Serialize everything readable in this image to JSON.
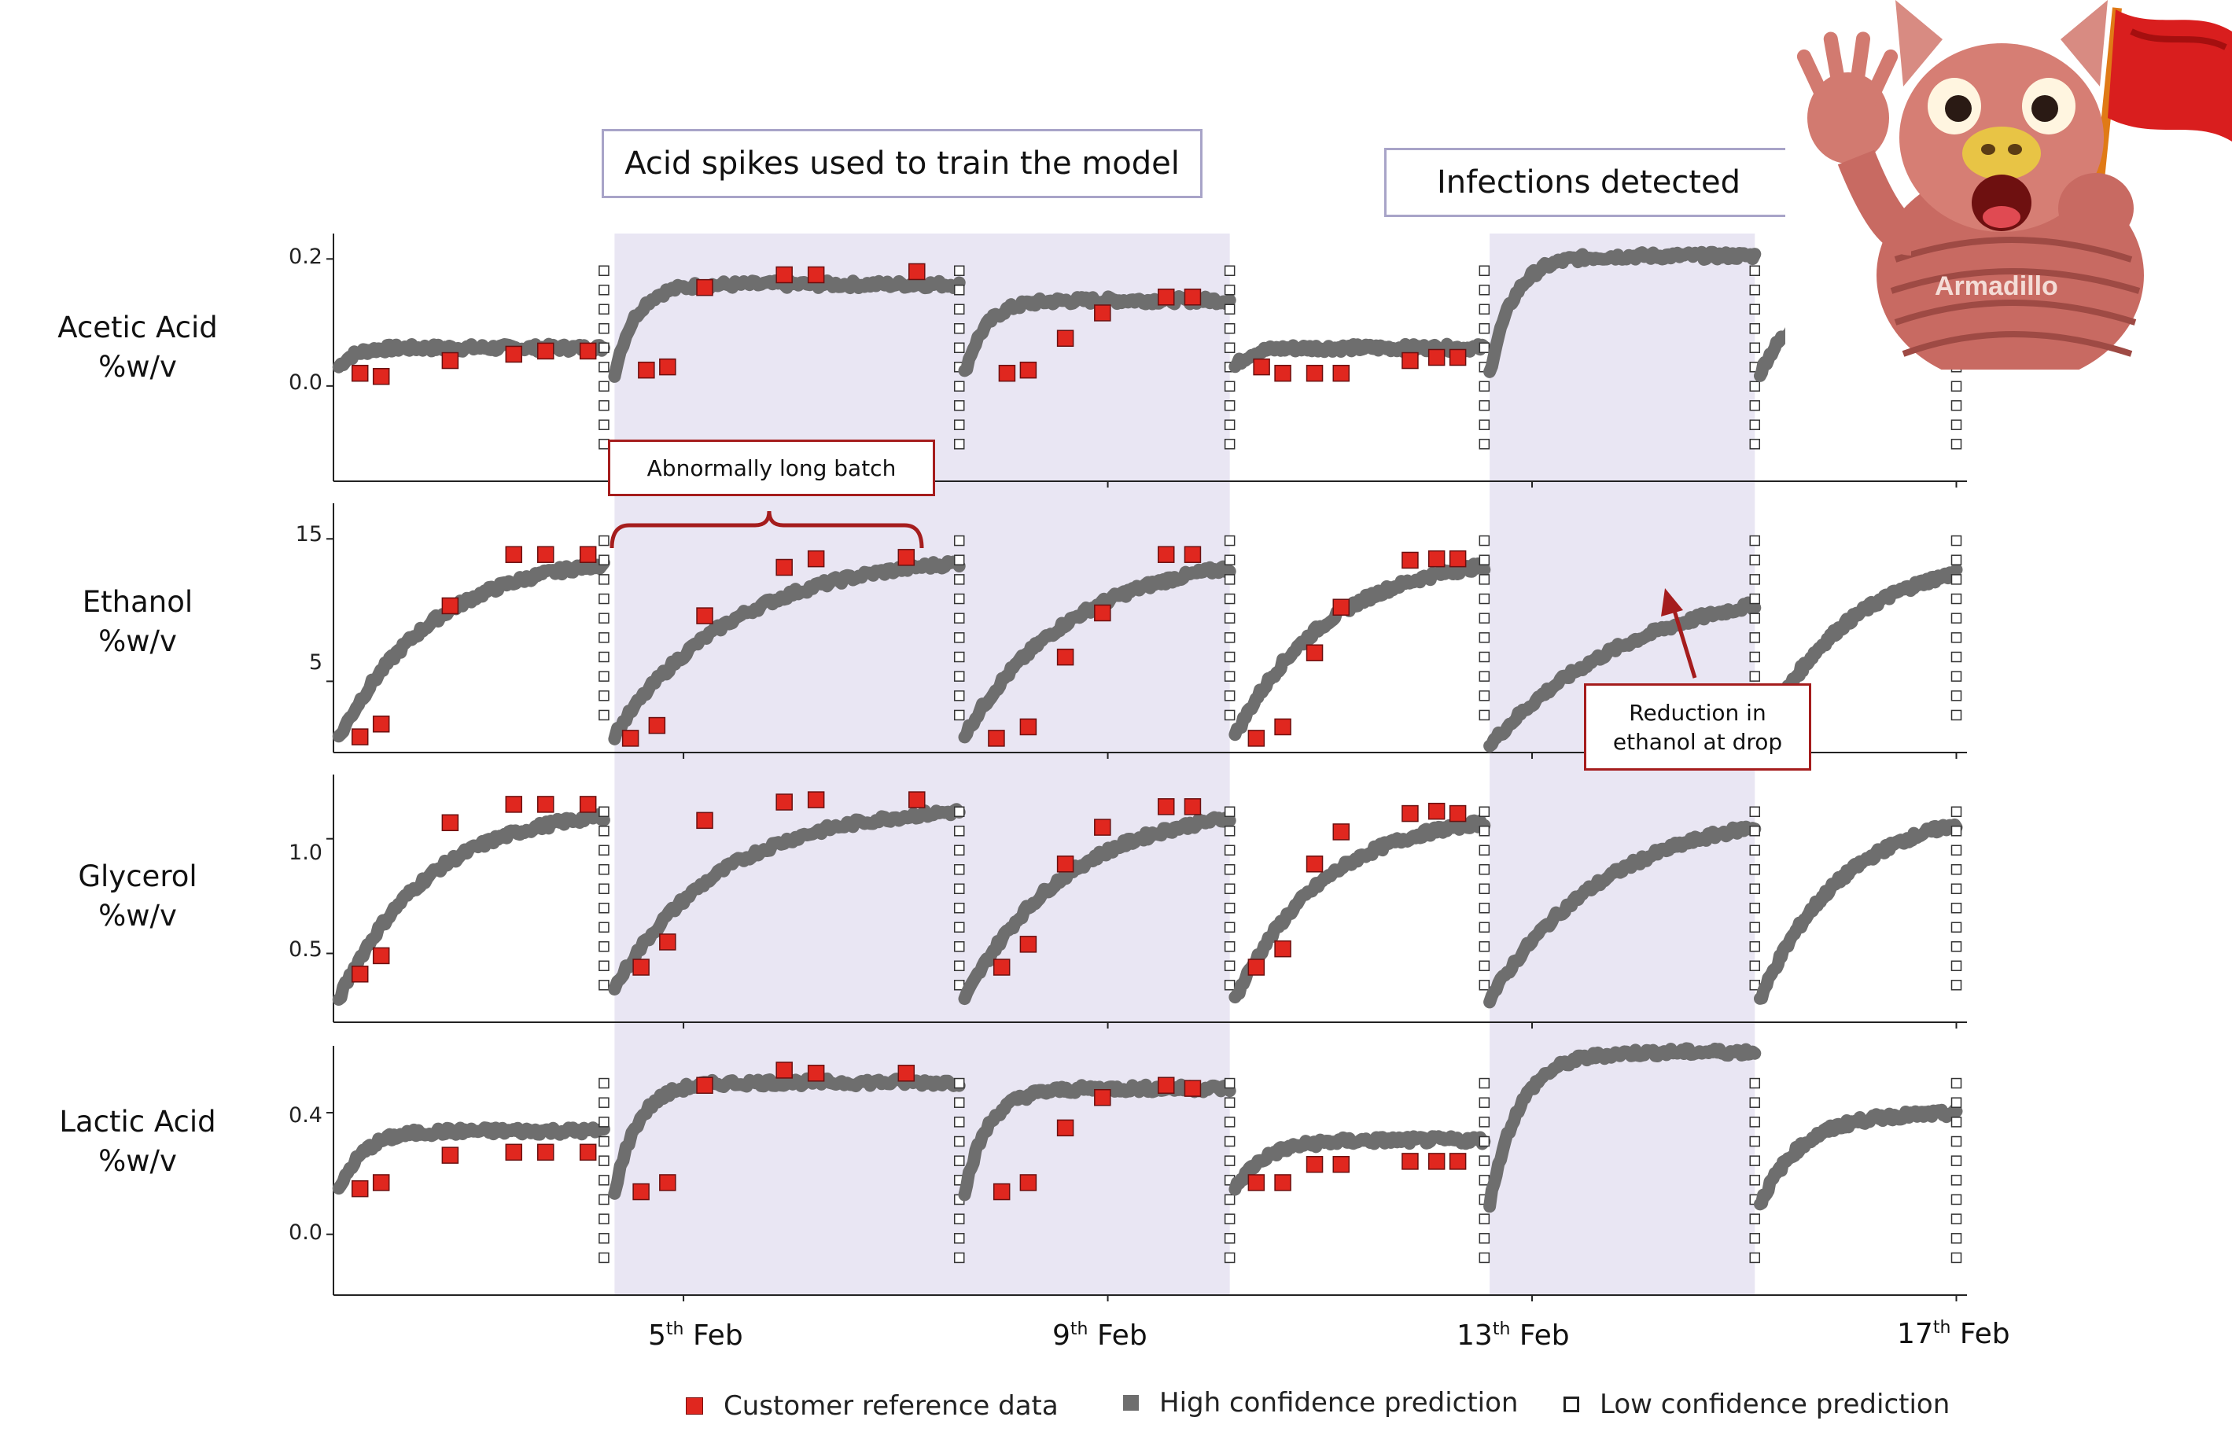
{
  "annotations": {
    "train_label": "Acid spikes used to train the model",
    "infect_label": "Infections detected",
    "long_batch_label": "Abnormally long batch",
    "reduction_label_1": "Reduction in",
    "reduction_label_2": "ethanol at drop"
  },
  "legend": {
    "reference": "Customer reference data",
    "high": "High confidence prediction",
    "low": "Low confidence prediction"
  },
  "colors": {
    "reference": "#e0271f",
    "prediction": "#6e6e6e",
    "low_conf_border": "#333333",
    "shade": "#e9e6f3",
    "callout_red": "#a51d1d"
  },
  "icons": [
    "armadillo-mascot-icon",
    "red-flag-icon"
  ],
  "chart_data": {
    "type": "scatter",
    "x_unit": "day of February",
    "xlim": [
      1.7,
      17.1
    ],
    "x_ticks": [
      {
        "value": 5,
        "num": "5",
        "sup": "th",
        "text": "Feb"
      },
      {
        "value": 9,
        "num": "9",
        "sup": "th",
        "text": "Feb"
      },
      {
        "value": 13,
        "num": "13",
        "sup": "th",
        "text": "Feb"
      },
      {
        "value": 17,
        "num": "17",
        "sup": "th",
        "text": "Feb"
      }
    ],
    "shaded_ranges": [
      [
        4.35,
        10.15
      ],
      [
        12.6,
        15.1
      ]
    ],
    "panels": [
      {
        "label_1": "Acetic Acid",
        "label_2": "%w/v",
        "ylim": [
          -0.15,
          0.24
        ],
        "yticks": [
          {
            "value": 0.0,
            "label": "0.0"
          },
          {
            "value": 0.2,
            "label": "0.2"
          }
        ],
        "batches": [
          {
            "x0": 1.75,
            "x1": 4.25,
            "base": 0.03,
            "peak": 0.06,
            "rise": 0.25
          },
          {
            "x0": 4.35,
            "x1": 7.6,
            "base": 0.02,
            "peak": 0.16,
            "rise": 0.35
          },
          {
            "x0": 7.65,
            "x1": 10.15,
            "base": 0.02,
            "peak": 0.135,
            "rise": 0.35
          },
          {
            "x0": 10.2,
            "x1": 12.55,
            "base": 0.03,
            "peak": 0.06,
            "rise": 0.25
          },
          {
            "x0": 12.6,
            "x1": 15.1,
            "base": 0.02,
            "peak": 0.205,
            "rise": 0.4
          },
          {
            "x0": 15.15,
            "x1": 17.0,
            "base": 0.02,
            "peak": 0.14,
            "rise": 0.6
          }
        ],
        "reference": [
          [
            1.95,
            0.02
          ],
          [
            2.15,
            0.015
          ],
          [
            2.8,
            0.04
          ],
          [
            3.4,
            0.05
          ],
          [
            3.7,
            0.055
          ],
          [
            4.1,
            0.055
          ],
          [
            4.65,
            0.025
          ],
          [
            4.85,
            0.03
          ],
          [
            5.2,
            0.155
          ],
          [
            5.95,
            0.175
          ],
          [
            6.25,
            0.175
          ],
          [
            7.2,
            0.18
          ],
          [
            8.05,
            0.02
          ],
          [
            8.25,
            0.025
          ],
          [
            8.6,
            0.075
          ],
          [
            8.95,
            0.115
          ],
          [
            9.55,
            0.14
          ],
          [
            9.8,
            0.14
          ],
          [
            10.45,
            0.03
          ],
          [
            10.65,
            0.02
          ],
          [
            10.95,
            0.02
          ],
          [
            11.2,
            0.02
          ],
          [
            11.85,
            0.04
          ],
          [
            12.1,
            0.045
          ],
          [
            12.3,
            0.045
          ]
        ]
      },
      {
        "label_1": "Ethanol",
        "label_2": "%w/v",
        "ylim": [
          0,
          17.5
        ],
        "yticks": [
          {
            "value": 5,
            "label": "5"
          },
          {
            "value": 15,
            "label": "15"
          }
        ],
        "batches": [
          {
            "x0": 1.75,
            "x1": 4.25,
            "base": 1.0,
            "peak": 14.0,
            "rise": 1.6
          },
          {
            "x0": 4.35,
            "x1": 7.6,
            "base": 1.2,
            "peak": 14.0,
            "rise": 2.0
          },
          {
            "x0": 7.65,
            "x1": 10.15,
            "base": 1.2,
            "peak": 14.0,
            "rise": 1.8
          },
          {
            "x0": 10.2,
            "x1": 12.55,
            "base": 1.2,
            "peak": 14.0,
            "rise": 1.6
          },
          {
            "x0": 12.6,
            "x1": 15.1,
            "base": 0.5,
            "peak": 12.3,
            "rise": 2.5
          },
          {
            "x0": 15.15,
            "x1": 17.0,
            "base": 1.0,
            "peak": 14.0,
            "rise": 1.5
          }
        ],
        "reference": [
          [
            1.95,
            1.1
          ],
          [
            2.15,
            2.0
          ],
          [
            2.8,
            10.3
          ],
          [
            3.4,
            13.9
          ],
          [
            3.7,
            13.9
          ],
          [
            4.1,
            13.9
          ],
          [
            4.5,
            1.0
          ],
          [
            4.75,
            1.9
          ],
          [
            5.2,
            9.6
          ],
          [
            5.95,
            13.0
          ],
          [
            6.25,
            13.6
          ],
          [
            7.1,
            13.7
          ],
          [
            7.95,
            1.0
          ],
          [
            8.25,
            1.8
          ],
          [
            8.6,
            6.7
          ],
          [
            8.95,
            9.8
          ],
          [
            9.55,
            13.9
          ],
          [
            9.8,
            13.9
          ],
          [
            10.4,
            1.0
          ],
          [
            10.65,
            1.8
          ],
          [
            10.95,
            7.0
          ],
          [
            11.2,
            10.2
          ],
          [
            11.85,
            13.5
          ],
          [
            12.1,
            13.6
          ],
          [
            12.3,
            13.6
          ]
        ]
      },
      {
        "label_1": "Glycerol",
        "label_2": "%w/v",
        "ylim": [
          0.2,
          1.28
        ],
        "yticks": [
          {
            "value": 0.5,
            "label": "0.5"
          },
          {
            "value": 1.0,
            "label": "1.0"
          }
        ],
        "batches": [
          {
            "x0": 1.75,
            "x1": 4.25,
            "base": 0.3,
            "peak": 1.14,
            "rise": 1.5
          },
          {
            "x0": 4.35,
            "x1": 7.6,
            "base": 0.35,
            "peak": 1.15,
            "rise": 1.8
          },
          {
            "x0": 7.65,
            "x1": 10.15,
            "base": 0.3,
            "peak": 1.15,
            "rise": 1.7
          },
          {
            "x0": 10.2,
            "x1": 12.55,
            "base": 0.3,
            "peak": 1.12,
            "rise": 1.5
          },
          {
            "x0": 12.6,
            "x1": 15.1,
            "base": 0.3,
            "peak": 1.14,
            "rise": 2.0
          },
          {
            "x0": 15.15,
            "x1": 17.0,
            "base": 0.3,
            "peak": 1.14,
            "rise": 1.4
          }
        ],
        "reference": [
          [
            1.95,
            0.41
          ],
          [
            2.15,
            0.49
          ],
          [
            2.8,
            1.07
          ],
          [
            3.4,
            1.15
          ],
          [
            3.7,
            1.15
          ],
          [
            4.1,
            1.15
          ],
          [
            4.6,
            0.44
          ],
          [
            4.85,
            0.55
          ],
          [
            5.2,
            1.08
          ],
          [
            5.95,
            1.16
          ],
          [
            6.25,
            1.17
          ],
          [
            7.2,
            1.17
          ],
          [
            8.0,
            0.44
          ],
          [
            8.25,
            0.54
          ],
          [
            8.6,
            0.89
          ],
          [
            8.95,
            1.05
          ],
          [
            9.55,
            1.14
          ],
          [
            9.8,
            1.14
          ],
          [
            10.4,
            0.44
          ],
          [
            10.65,
            0.52
          ],
          [
            10.95,
            0.89
          ],
          [
            11.2,
            1.03
          ],
          [
            11.85,
            1.11
          ],
          [
            12.1,
            1.12
          ],
          [
            12.3,
            1.11
          ]
        ]
      },
      {
        "label_1": "Lactic Acid",
        "label_2": "%w/v",
        "ylim": [
          -0.2,
          0.62
        ],
        "yticks": [
          {
            "value": 0.0,
            "label": "0.0"
          },
          {
            "value": 0.4,
            "label": "0.4"
          }
        ],
        "batches": [
          {
            "x0": 1.75,
            "x1": 4.25,
            "base": 0.14,
            "peak": 0.34,
            "rise": 0.4
          },
          {
            "x0": 4.35,
            "x1": 7.6,
            "base": 0.14,
            "peak": 0.5,
            "rise": 0.4
          },
          {
            "x0": 7.65,
            "x1": 10.15,
            "base": 0.14,
            "peak": 0.48,
            "rise": 0.4
          },
          {
            "x0": 10.2,
            "x1": 12.55,
            "base": 0.15,
            "peak": 0.31,
            "rise": 0.5
          },
          {
            "x0": 12.6,
            "x1": 15.1,
            "base": 0.1,
            "peak": 0.6,
            "rise": 0.5
          },
          {
            "x0": 15.15,
            "x1": 17.0,
            "base": 0.1,
            "peak": 0.4,
            "rise": 0.7
          }
        ],
        "reference": [
          [
            1.95,
            0.15
          ],
          [
            2.15,
            0.17
          ],
          [
            2.8,
            0.26
          ],
          [
            3.4,
            0.27
          ],
          [
            3.7,
            0.27
          ],
          [
            4.1,
            0.27
          ],
          [
            4.6,
            0.14
          ],
          [
            4.85,
            0.17
          ],
          [
            5.2,
            0.49
          ],
          [
            5.95,
            0.54
          ],
          [
            6.25,
            0.53
          ],
          [
            7.1,
            0.53
          ],
          [
            8.0,
            0.14
          ],
          [
            8.25,
            0.17
          ],
          [
            8.6,
            0.35
          ],
          [
            8.95,
            0.45
          ],
          [
            9.55,
            0.49
          ],
          [
            9.8,
            0.48
          ],
          [
            10.4,
            0.17
          ],
          [
            10.65,
            0.17
          ],
          [
            10.95,
            0.23
          ],
          [
            11.2,
            0.23
          ],
          [
            11.85,
            0.24
          ],
          [
            12.1,
            0.24
          ],
          [
            12.3,
            0.24
          ]
        ]
      }
    ]
  }
}
